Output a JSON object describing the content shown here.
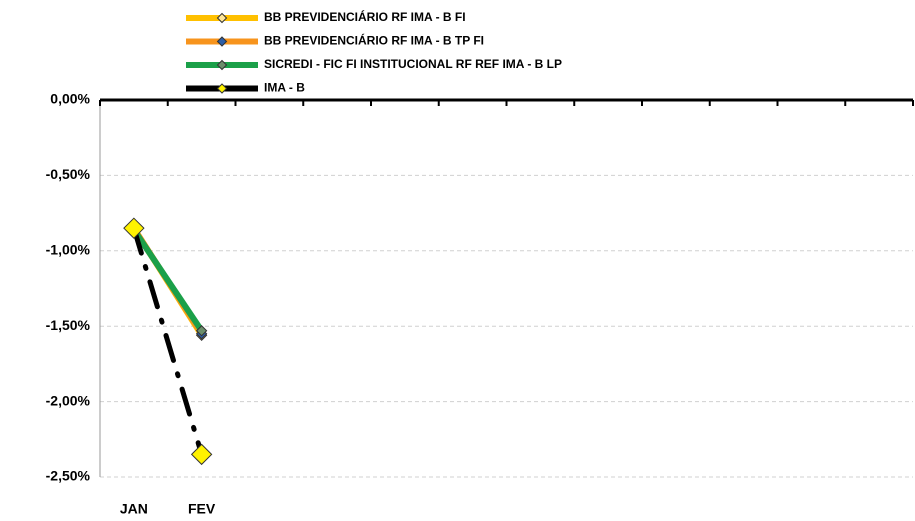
{
  "chart_data": {
    "type": "line",
    "categories": [
      "JAN",
      "FEV",
      null,
      null,
      null,
      null,
      null,
      null,
      null,
      null,
      null,
      null
    ],
    "series": [
      {
        "name": "BB PREVIDENCIÁRIO RF IMA - B FI",
        "color": "#FFC000",
        "marker_color": "#FFE699",
        "values": [
          -0.85,
          -1.56,
          null,
          null,
          null,
          null,
          null,
          null,
          null,
          null,
          null,
          null
        ]
      },
      {
        "name": "BB PREVIDENCIÁRIO RF IMA - B TP FI",
        "color": "#F7941D",
        "marker_color": "#2E5FA8",
        "values": [
          -0.85,
          -1.55,
          null,
          null,
          null,
          null,
          null,
          null,
          null,
          null,
          null,
          null
        ]
      },
      {
        "name": "SICREDI - FIC FI INSTITUCIONAL RF REF IMA - B LP",
        "color": "#1BA049",
        "marker_color": "#6B8E6B",
        "values": [
          -0.86,
          -1.53,
          null,
          null,
          null,
          null,
          null,
          null,
          null,
          null,
          null,
          null
        ]
      },
      {
        "name": "IMA - B",
        "color": "#000000",
        "marker_color": "#FFF200",
        "dashed": true,
        "values": [
          -0.85,
          -2.35,
          null,
          null,
          null,
          null,
          null,
          null,
          null,
          null,
          null,
          null
        ]
      }
    ],
    "ylim": [
      -2.5,
      0
    ],
    "yticks": [
      {
        "value": 0,
        "label": "0,00%"
      },
      {
        "value": -0.5,
        "label": "-0,50%"
      },
      {
        "value": -1,
        "label": "-1,00%"
      },
      {
        "value": -1.5,
        "label": "-1,50%"
      },
      {
        "value": -2,
        "label": "-2,00%"
      },
      {
        "value": -2.5,
        "label": "-2,50%"
      }
    ],
    "grid": true,
    "legend": "top"
  }
}
